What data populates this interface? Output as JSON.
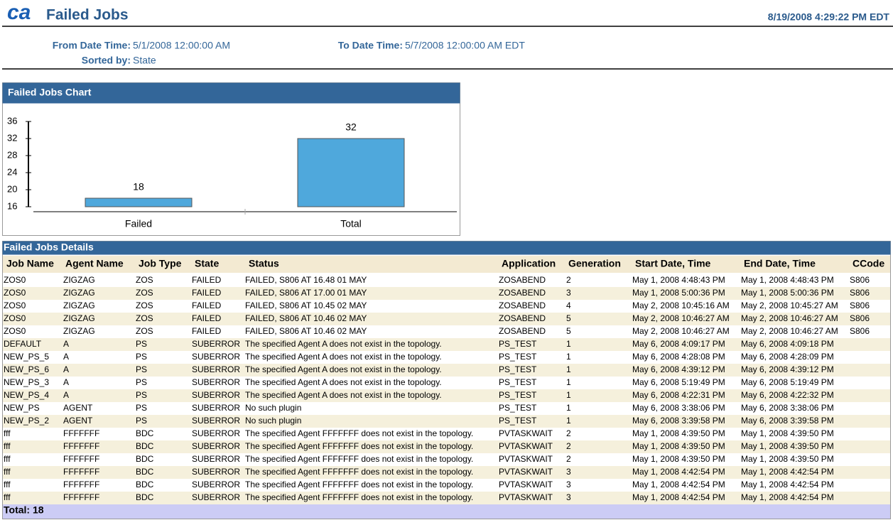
{
  "header": {
    "logo": "ca",
    "title": "Failed Jobs",
    "timestamp": "8/19/2008 4:29:22 PM EDT"
  },
  "params": {
    "from_label": "From Date Time:",
    "from_value": "5/1/2008 12:00:00 AM",
    "to_label": "To Date Time:",
    "to_value": "5/7/2008 12:00:00 AM EDT",
    "sorted_label": "Sorted by:",
    "sorted_value": "State"
  },
  "chart_data": {
    "type": "bar",
    "title": "Failed Jobs Chart",
    "categories": [
      "Failed",
      "Total"
    ],
    "values": [
      18,
      32
    ],
    "color": "#4fa8dc",
    "ylim": [
      16,
      36
    ],
    "yticks": [
      16,
      20,
      24,
      28,
      32,
      36
    ]
  },
  "table": {
    "title": "Failed Jobs Details",
    "columns": [
      "Job Name",
      "Agent Name",
      "Job Type",
      "State",
      "Status",
      "Application",
      "Generation",
      "Start Date, Time",
      "End Date, Time",
      "CCode"
    ],
    "rows": [
      [
        "ZOS0",
        "ZIGZAG",
        "ZOS",
        "FAILED",
        "FAILED, S806 AT 16.48 01 MAY",
        "ZOSABEND",
        "2",
        "May 1, 2008 4:48:43 PM",
        "May 1, 2008 4:48:43 PM",
        "S806"
      ],
      [
        "ZOS0",
        "ZIGZAG",
        "ZOS",
        "FAILED",
        "FAILED, S806 AT 17.00 01 MAY",
        "ZOSABEND",
        "3",
        "May 1, 2008 5:00:36 PM",
        "May 1, 2008 5:00:36 PM",
        "S806"
      ],
      [
        "ZOS0",
        "ZIGZAG",
        "ZOS",
        "FAILED",
        "FAILED, S806 AT 10.45 02 MAY",
        "ZOSABEND",
        "4",
        "May 2, 2008 10:45:16 AM",
        "May 2, 2008 10:45:27 AM",
        "S806"
      ],
      [
        "ZOS0",
        "ZIGZAG",
        "ZOS",
        "FAILED",
        "FAILED, S806 AT 10.46 02 MAY",
        "ZOSABEND",
        "5",
        "May 2, 2008 10:46:27 AM",
        "May 2, 2008 10:46:27 AM",
        "S806"
      ],
      [
        "ZOS0",
        "ZIGZAG",
        "ZOS",
        "FAILED",
        "FAILED, S806 AT 10.46 02 MAY",
        "ZOSABEND",
        "5",
        "May 2, 2008 10:46:27 AM",
        "May 2, 2008 10:46:27 AM",
        "S806"
      ],
      [
        "DEFAULT",
        "A",
        "PS",
        "SUBERROR",
        "The specified Agent A does not exist in the topology.",
        "PS_TEST",
        "1",
        "May 6, 2008 4:09:17 PM",
        "May 6, 2008 4:09:18 PM"
      ],
      [
        "NEW_PS_5",
        "A",
        "PS",
        "SUBERROR",
        "The specified Agent A does not exist in the topology.",
        "PS_TEST",
        "1",
        "May 6, 2008 4:28:08 PM",
        "May 6, 2008 4:28:09 PM"
      ],
      [
        "NEW_PS_6",
        "A",
        "PS",
        "SUBERROR",
        "The specified Agent A does not exist in the topology.",
        "PS_TEST",
        "1",
        "May 6, 2008 4:39:12 PM",
        "May 6, 2008 4:39:12 PM"
      ],
      [
        "NEW_PS_3",
        "A",
        "PS",
        "SUBERROR",
        "The specified Agent A does not exist in the topology.",
        "PS_TEST",
        "1",
        "May 6, 2008 5:19:49 PM",
        "May 6, 2008 5:19:49 PM"
      ],
      [
        "NEW_PS_4",
        "A",
        "PS",
        "SUBERROR",
        "The specified Agent A does not exist in the topology.",
        "PS_TEST",
        "1",
        "May 6, 2008 4:22:31 PM",
        "May 6, 2008 4:22:32 PM"
      ],
      [
        "NEW_PS",
        "AGENT",
        "PS",
        "SUBERROR",
        "No such plugin",
        "PS_TEST",
        "1",
        "May 6, 2008 3:38:06 PM",
        "May 6, 2008 3:38:06 PM"
      ],
      [
        "NEW_PS_2",
        "AGENT",
        "PS",
        "SUBERROR",
        "No such plugin",
        "PS_TEST",
        "1",
        "May 6, 2008 3:39:58 PM",
        "May 6, 2008 3:39:58 PM"
      ],
      [
        "fff",
        "FFFFFFF",
        "BDC",
        "SUBERROR",
        "The specified Agent FFFFFFF does not exist in the topology.",
        "PVTASKWAIT",
        "2",
        "May 1, 2008 4:39:50 PM",
        "May 1, 2008 4:39:50 PM"
      ],
      [
        "fff",
        "FFFFFFF",
        "BDC",
        "SUBERROR",
        "The specified Agent FFFFFFF does not exist in the topology.",
        "PVTASKWAIT",
        "2",
        "May 1, 2008 4:39:50 PM",
        "May 1, 2008 4:39:50 PM"
      ],
      [
        "fff",
        "FFFFFFF",
        "BDC",
        "SUBERROR",
        "The specified Agent FFFFFFF does not exist in the topology.",
        "PVTASKWAIT",
        "2",
        "May 1, 2008 4:39:50 PM",
        "May 1, 2008 4:39:50 PM"
      ],
      [
        "fff",
        "FFFFFFF",
        "BDC",
        "SUBERROR",
        "The specified Agent FFFFFFF does not exist in the topology.",
        "PVTASKWAIT",
        "3",
        "May 1, 2008 4:42:54 PM",
        "May 1, 2008 4:42:54 PM"
      ],
      [
        "fff",
        "FFFFFFF",
        "BDC",
        "SUBERROR",
        "The specified Agent FFFFFFF does not exist in the topology.",
        "PVTASKWAIT",
        "3",
        "May 1, 2008 4:42:54 PM",
        "May 1, 2008 4:42:54 PM"
      ],
      [
        "fff",
        "FFFFFFF",
        "BDC",
        "SUBERROR",
        "The specified Agent FFFFFFF does not exist in the topology.",
        "PVTASKWAIT",
        "3",
        "May 1, 2008 4:42:54 PM",
        "May 1, 2008 4:42:54 PM"
      ]
    ],
    "total": "Total: 18"
  }
}
